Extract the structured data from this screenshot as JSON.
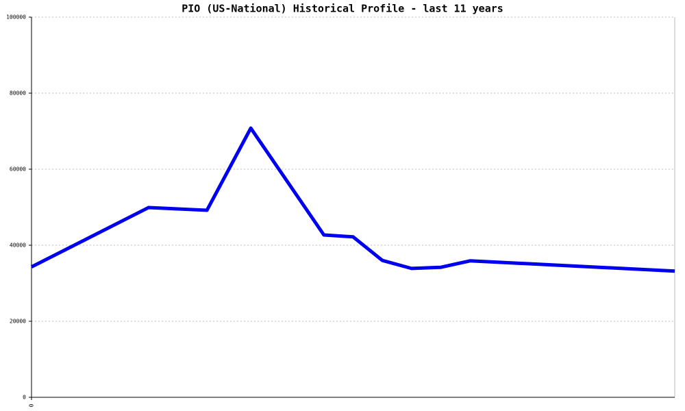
{
  "chart_data": {
    "type": "line",
    "title": "PIO (US-National) Historical Profile - last 11 years",
    "x": [
      0,
      2,
      3,
      3.75,
      5,
      5.5,
      6,
      6.5,
      7,
      7.5,
      11
    ],
    "series": [
      {
        "color": "#0000ee",
        "values": [
          34300,
          49900,
          49200,
          70800,
          42700,
          42200,
          36000,
          33900,
          34200,
          35900,
          33200
        ]
      }
    ],
    "xlim": [
      0,
      11
    ],
    "xticks": [
      0
    ],
    "ylim": [
      0,
      100000
    ],
    "yticks": [
      0,
      20000,
      40000,
      60000,
      80000,
      100000
    ],
    "grid": true
  }
}
